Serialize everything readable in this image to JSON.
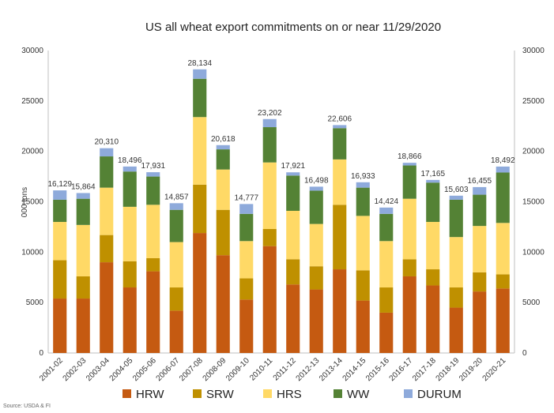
{
  "chart_data": {
    "type": "bar",
    "stacked": true,
    "title": "US all wheat export commitments on or near 11/29/2020",
    "ylabel": "000 tons",
    "ylim": [
      0,
      30000
    ],
    "y_ticks": [
      0,
      5000,
      10000,
      15000,
      20000,
      25000,
      30000
    ],
    "right_axis": true,
    "grid": false,
    "legend_position": "bottom",
    "source": "Source: USDA & FI",
    "categories": [
      "2001-02",
      "2002-03",
      "2003-04",
      "2004-05",
      "2005-06",
      "2006-07",
      "2007-08",
      "2008-09",
      "2009-10",
      "2010-11",
      "2011-12",
      "2012-13",
      "2013-14",
      "2014-15",
      "2015-16",
      "2016-17",
      "2017-18",
      "2018-19",
      "2019-20",
      "2020-21"
    ],
    "totals": [
      "16,129",
      "15,864",
      "20,310",
      "18,496",
      "17,931",
      "14,857",
      "28,134",
      "20,618",
      "14,777",
      "23,202",
      "17,921",
      "16,498",
      "22,606",
      "16,933",
      "14,424",
      "18,866",
      "17,165",
      "15,603",
      "16,455",
      "18,492"
    ],
    "series": [
      {
        "name": "HRW",
        "color": "#c55a11",
        "values": [
          5400,
          5400,
          9000,
          6500,
          8100,
          4200,
          11900,
          9700,
          5300,
          10600,
          6800,
          6300,
          8300,
          5200,
          4000,
          7600,
          6700,
          4500,
          6100,
          6400
        ]
      },
      {
        "name": "SRW",
        "color": "#bf9000",
        "values": [
          3800,
          2200,
          2700,
          2600,
          1300,
          2300,
          4800,
          4500,
          2100,
          1700,
          2500,
          2300,
          6400,
          3000,
          2500,
          1700,
          1600,
          2000,
          1900,
          1400
        ]
      },
      {
        "name": "HRS",
        "color": "#ffd966",
        "values": [
          3800,
          5100,
          4700,
          5400,
          5300,
          4500,
          6700,
          4000,
          3700,
          6600,
          4800,
          4200,
          4500,
          5400,
          4600,
          6000,
          4700,
          5000,
          4600,
          5100
        ]
      },
      {
        "name": "WW",
        "color": "#548235",
        "values": [
          2200,
          2600,
          3100,
          3500,
          2800,
          3200,
          3800,
          2000,
          2700,
          3500,
          3500,
          3300,
          3100,
          2800,
          2700,
          3300,
          3900,
          3700,
          3100,
          5000
        ]
      },
      {
        "name": "DURUM",
        "color": "#8eaadb",
        "values": [
          929,
          564,
          810,
          496,
          431,
          657,
          934,
          418,
          977,
          802,
          321,
          398,
          306,
          533,
          624,
          266,
          265,
          403,
          755,
          592
        ]
      }
    ]
  }
}
